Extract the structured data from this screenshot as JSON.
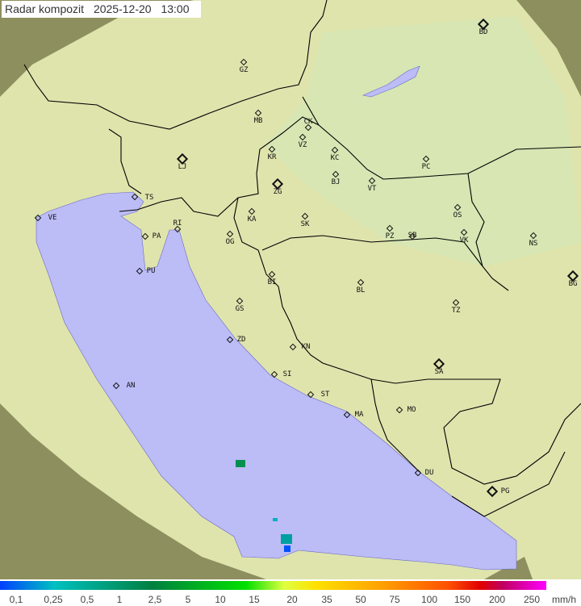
{
  "header": {
    "title": "Radar kompozit",
    "date": "2025-12-20",
    "time": "13:00"
  },
  "colors": {
    "sea": "#bcbcf6",
    "land": "#e6ebb8",
    "outside_coverage": "#8c8c5a",
    "border": "#000000"
  },
  "cities": [
    {
      "code": "BD",
      "major": true
    },
    {
      "code": "GZ"
    },
    {
      "code": "MB"
    },
    {
      "code": "CK"
    },
    {
      "code": "VZ"
    },
    {
      "code": "KR"
    },
    {
      "code": "KC"
    },
    {
      "code": "LJ",
      "major": true
    },
    {
      "code": "PC"
    },
    {
      "code": "ZG",
      "major": true
    },
    {
      "code": "BJ"
    },
    {
      "code": "VT"
    },
    {
      "code": "TS"
    },
    {
      "code": "VE"
    },
    {
      "code": "RI"
    },
    {
      "code": "KA"
    },
    {
      "code": "SK"
    },
    {
      "code": "OS"
    },
    {
      "code": "PA"
    },
    {
      "code": "OG"
    },
    {
      "code": "PZ"
    },
    {
      "code": "SB"
    },
    {
      "code": "VK"
    },
    {
      "code": "NS"
    },
    {
      "code": "PU"
    },
    {
      "code": "BI"
    },
    {
      "code": "BL"
    },
    {
      "code": "BG",
      "major": true
    },
    {
      "code": "GS"
    },
    {
      "code": "TZ"
    },
    {
      "code": "ZD"
    },
    {
      "code": "KN"
    },
    {
      "code": "AN"
    },
    {
      "code": "SI"
    },
    {
      "code": "SA",
      "major": true
    },
    {
      "code": "ST"
    },
    {
      "code": "MA"
    },
    {
      "code": "MO"
    },
    {
      "code": "DU"
    },
    {
      "code": "PG",
      "major": true
    }
  ],
  "legend": {
    "ticks": [
      "0,1",
      "0,25",
      "0,5",
      "1",
      "2,5",
      "5",
      "10",
      "15",
      "20",
      "35",
      "50",
      "75",
      "100",
      "150",
      "200",
      "250"
    ],
    "unit": "mm/h"
  }
}
